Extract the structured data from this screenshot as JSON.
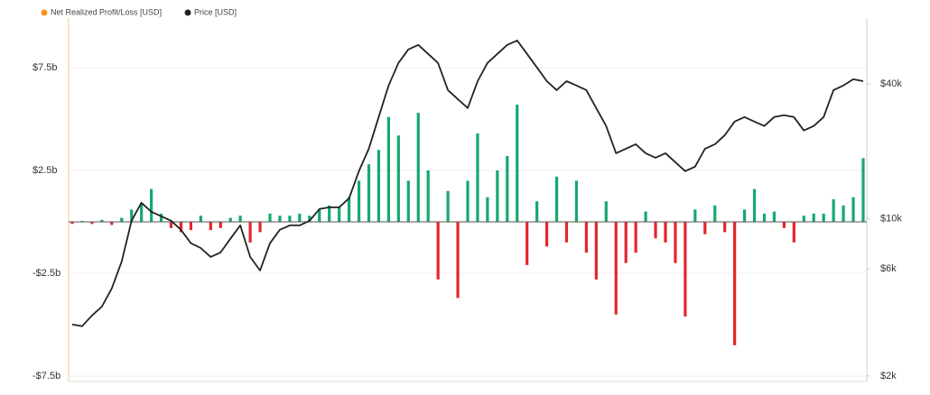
{
  "chart_data": {
    "type": "bar-line",
    "series": [
      {
        "name": "Net Realized Profit/Loss [USD]",
        "color": "#f7931a",
        "positive_color": "#16a870",
        "negative_color": "#e3262a",
        "values": [
          -100000000.0,
          50000000.0,
          -100000000.0,
          100000000.0,
          -150000000.0,
          200000000.0,
          600000000.0,
          900000000.0,
          1600000000.0,
          400000000.0,
          -300000000.0,
          -500000000.0,
          -400000000.0,
          300000000.0,
          -400000000.0,
          -300000000.0,
          200000000.0,
          300000000.0,
          -1000000000.0,
          -500000000.0,
          400000000.0,
          300000000.0,
          300000000.0,
          400000000.0,
          300000000.0,
          600000000.0,
          800000000.0,
          700000000.0,
          1200000000.0,
          2000000000.0,
          2800000000.0,
          3500000000.0,
          5100000000.0,
          4200000000.0,
          2000000000.0,
          5300000000.0,
          2500000000.0,
          -2800000000.0,
          1500000000.0,
          -3700000000.0,
          2000000000.0,
          4300000000.0,
          1200000000.0,
          2500000000.0,
          3200000000.0,
          5700000000.0,
          -2100000000.0,
          1000000000.0,
          -1200000000.0,
          2200000000.0,
          -1000000000.0,
          2000000000.0,
          -1500000000.0,
          -2800000000.0,
          1000000000.0,
          -4500000000.0,
          -2000000000.0,
          -1500000000.0,
          500000000.0,
          -800000000.0,
          -1000000000.0,
          -2000000000.0,
          -4600000000.0,
          600000000.0,
          -600000000.0,
          800000000.0,
          -500000000.0,
          -6000000000.0,
          600000000.0,
          1600000000.0,
          400000000.0,
          500000000.0,
          -300000000.0,
          -1000000000.0,
          300000000.0,
          400000000.0,
          400000000.0,
          1100000000.0,
          800000000.0,
          1200000000.0,
          3100000000.0
        ]
      },
      {
        "name": "Price [USD]",
        "color": "#222222",
        "axis": "y2",
        "values": [
          3390,
          3330,
          3720,
          4070,
          4910,
          6470,
          9820,
          11810,
          10770,
          10280,
          9820,
          8950,
          7800,
          7430,
          6780,
          7100,
          8170,
          9370,
          6780,
          5900,
          7800,
          8950,
          9370,
          9370,
          9820,
          11070,
          11270,
          11270,
          12360,
          16330,
          20560,
          28440,
          39290,
          49550,
          56890,
          59570,
          54330,
          49550,
          37500,
          34200,
          31190,
          41110,
          49550,
          54330,
          59570,
          62370,
          54330,
          47320,
          41110,
          37500,
          41110,
          39290,
          37500,
          31190,
          25940,
          19630,
          20560,
          21530,
          19630,
          18750,
          19630,
          17910,
          16330,
          17100,
          20560,
          21530,
          23610,
          27160,
          28440,
          27160,
          25940,
          28440,
          28970,
          28440,
          24770,
          25940,
          28440,
          37500,
          39290,
          41880,
          41110
        ]
      }
    ],
    "categories": [
      null,
      null,
      null,
      null,
      null,
      null,
      null,
      null,
      null,
      null,
      null,
      null,
      null,
      null,
      null,
      null,
      null,
      null,
      null,
      null,
      null,
      null,
      null,
      null,
      null,
      null,
      null,
      null,
      null,
      null,
      null,
      null,
      null,
      null,
      null,
      null,
      null,
      null,
      null,
      null,
      null,
      null,
      null,
      null,
      null,
      null,
      null,
      null,
      null,
      null,
      null,
      null,
      null,
      null,
      null,
      null,
      null,
      null,
      null,
      null,
      null,
      null,
      null,
      null,
      null,
      null,
      null,
      null,
      null,
      null,
      null,
      null,
      null,
      null,
      null,
      null,
      null,
      null,
      null,
      null,
      null
    ],
    "ylim": [
      -7760000000.0,
      9910000000.0
    ],
    "yticks": [
      {
        "value": 7500000000.0,
        "label": "$7.5b"
      },
      {
        "value": 2500000000.0,
        "label": "$2.5b"
      },
      {
        "value": -2500000000.0,
        "label": "-$2.5b"
      },
      {
        "value": -7500000000.0,
        "label": "-$7.5b"
      }
    ],
    "y2lim": [
      1890,
      78500
    ],
    "y2log": true,
    "y2ticks": [
      {
        "value": 40000,
        "label": "$40k"
      },
      {
        "value": 10000,
        "label": "$10k"
      },
      {
        "value": 6000,
        "label": "$6k"
      },
      {
        "value": 2000,
        "label": "$2k"
      }
    ],
    "grid": true
  }
}
